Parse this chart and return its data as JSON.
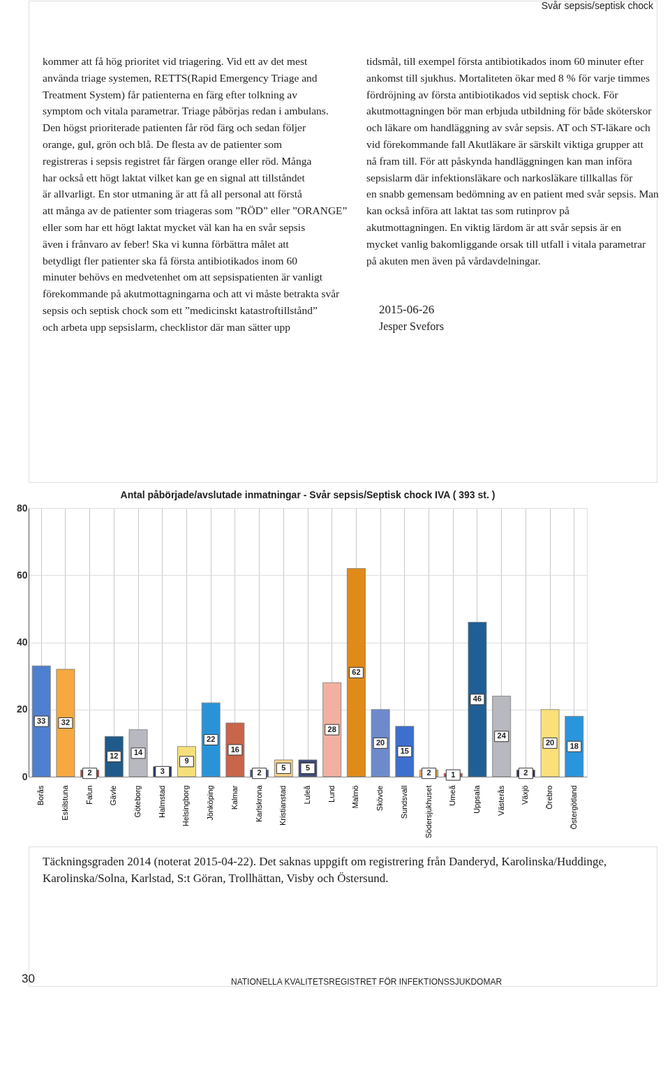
{
  "chart_data": {
    "type": "bar",
    "title": "Antal påbörjade/avslutade inmatningar - Svår sepsis/Septisk chock IVA ( 393 st. )",
    "categories": [
      "Borås",
      "Eskilstuna",
      "Falun",
      "Gävle",
      "Göteborg",
      "Halmstad",
      "Helsingborg",
      "Jönköping",
      "Kalmar",
      "Karlskrona",
      "Kristianstad",
      "Luleå",
      "Lund",
      "Malmö",
      "Skövde",
      "Sundsvall",
      "Södersjukhuset",
      "Umeå",
      "Uppsala",
      "Västerås",
      "Växjö",
      "Örebro",
      "Östergötland"
    ],
    "values": [
      33,
      32,
      2,
      12,
      14,
      3,
      9,
      22,
      16,
      2,
      5,
      5,
      28,
      62,
      20,
      15,
      2,
      1,
      46,
      24,
      2,
      20,
      18
    ],
    "colors": [
      "#4f7fcf",
      "#f5a940",
      "#c0392b",
      "#1f5a8a",
      "#b8b8c0",
      "#2a3560",
      "#f5df7a",
      "#2a93d8",
      "#c8654a",
      "#3a5aa8",
      "#f7d08a",
      "#3d4a7a",
      "#f2b0a0",
      "#e08a1a",
      "#6d8bcc",
      "#3d6fcf",
      "#e8a850",
      "#c04040",
      "#1f5f95",
      "#b8b8c0",
      "#2a3560",
      "#fbe07a",
      "#2a95dc"
    ],
    "ylim": [
      0,
      80
    ],
    "yticks": [
      0,
      20,
      40,
      60,
      80
    ],
    "grid": true,
    "data_labels": true,
    "annotations": [
      "Svår sepsis/septisk chock",
      "kommer att få hög prioritet vid triagering. Vid ett av det mest använda triage systemen, RETTS(Rapid Emergency Triage and Treatment System) får patienterna en färg efter tolkning av symptom och vitala parametrar. Triage påbörjas redan i ambulans. Den högst prioriterade patienten får röd färg och sedan följer orange, gul, grön och blå. De flesta av de patienter som registreras i sepsis registret får färgen orange eller röd. Många har också ett högt laktat vilket kan ge en signal att tillståndet är allvarligt. En stor utmaning är att få all personal att förstå att många av de patienter som triageras som ”RÖD” eller ”ORANGE” eller som har ett högt laktat mycket väl kan ha en svår sepsis även i frånvaro av feber! Ska vi kunna förbättra målet att betydligt fler patienter ska få första antibiotikados inom 60 minuter behövs en medvetenhet om att sepsispatienten är vanligt förekommande på akutmottagningarna och att vi måste betrakta svår sepsis och septisk chock som ett ”medicinskt katastroftillstånd” och arbeta upp sepsislarm, checklistor där man sätter upp",
      "tidsmål, till exempel första antibiotikados inom 60 minuter efter ankomst till sjukhus. Mortaliteten ökar med 8 % för varje timmes fördröjning av första antibiotikados vid septisk chock. För akutmottagningen bör man erbjuda utbildning för både sköterskor och läkare om handläggning av svår sepsis. AT och ST-läkare och vid förekommande fall Akutläkare är särskilt viktiga grupper att nå fram till. För att påskynda handläggningen kan man införa sepsislarm där infektionsläkare och narkosläkare tillkallas för en snabb gemensam bedömning av en patient med svår sepsis. Man kan också införa att laktat tas som rutinprov på akutmottagningen. En viktig lärdom är att svår sepsis är en mycket vanlig bakomliggande orsak till utfall i vitala parametrar på akuten men även på vårdavdelningar.",
      "2015-06-26",
      "Jesper Svefors",
      "Täckningsgraden 2014 (noterat 2015-04-22). Det saknas uppgift om registrering från Danderyd, Karolinska/Huddinge, Karolinska/Solna, Karlstad, S:t Göran, Trollhättan, Visby och Östersund.",
      "30",
      "NATIONELLA KVALITETSREGISTRET FÖR INFEKTIONSSJUKDOMAR"
    ]
  }
}
